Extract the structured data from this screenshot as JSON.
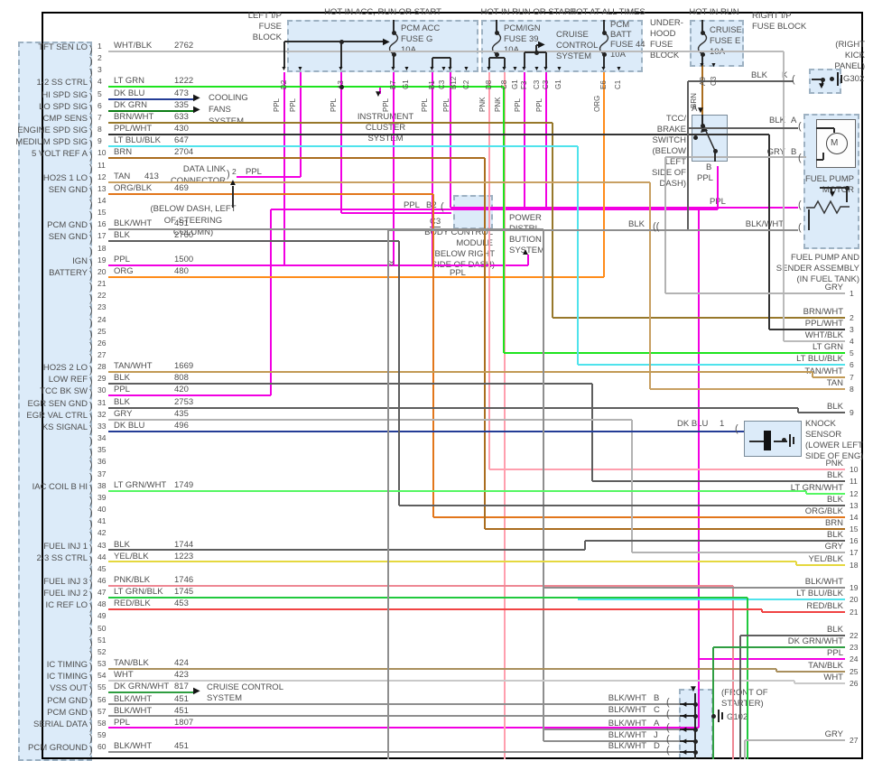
{
  "wire_colors": {
    "PPL": "#f200e2",
    "PNK": "#ff9fae",
    "PNK/BLK": "#ee8793",
    "ORG": "#ff8c1a",
    "ORG/BLK": "#e2761b",
    "BRN": "#aa6d1f",
    "BRN/WHT": "#97782b",
    "TAN": "#c8a063",
    "TAN/WHT": "#c29a55",
    "TAN/BLK": "#a98f5d",
    "WHT": "#c9c9c9",
    "WHT/BLK": "#bbbbbb",
    "GRY": "#b3b3b3",
    "BLK": "#5e5e5e",
    "BLK/WHT": "#8e8e8e",
    "LT GRN": "#1ee41e",
    "LT GRN/WHT": "#55f763",
    "LT GRN/BLK": "#21c93e",
    "DK GRN": "#0b7d14",
    "DK GRN/WHT": "#2f9e41",
    "DK BLU": "#243d96",
    "LT BLU/BLK": "#4fe3ec",
    "YEL/BLK": "#e5d83f",
    "RED/BLK": "#f04343",
    "BUS": "#2b2b2b"
  },
  "pcm_connector": {
    "pins": [
      {
        "n": 1,
        "label": "TFT SEN LO",
        "wire": "WHT/BLK",
        "circuit": "2762"
      },
      {
        "n": 2
      },
      {
        "n": 3
      },
      {
        "n": 4,
        "label": "1-2 SS CTRL",
        "wire": "LT GRN",
        "circuit": "1222"
      },
      {
        "n": 5,
        "label": "HI SPD SIG",
        "wire": "DK BLU",
        "circuit": "473"
      },
      {
        "n": 6,
        "label": "LO SPD SIG",
        "wire": "DK GRN",
        "circuit": "335"
      },
      {
        "n": 7,
        "label": "CMP SENS",
        "wire": "BRN/WHT",
        "circuit": "633"
      },
      {
        "n": 8,
        "label": "ENGINE SPD SIG",
        "wire": "PPL/WHT",
        "circuit": "430"
      },
      {
        "n": 9,
        "label": "MEDIUM SPD SIG",
        "wire": "LT BLU/BLK",
        "circuit": "647"
      },
      {
        "n": 10,
        "label": "5 VOLT REF A",
        "wire": "BRN",
        "circuit": "2704"
      },
      {
        "n": 11
      },
      {
        "n": 12,
        "label": "HO2S 1 LO",
        "wire": "TAN",
        "circuit": "413"
      },
      {
        "n": 13,
        "label": "SEN GND",
        "wire": "ORG/BLK",
        "circuit": "469"
      },
      {
        "n": 14
      },
      {
        "n": 15
      },
      {
        "n": 16,
        "label": "PCM GND",
        "wire": "BLK/WHT",
        "circuit": "451"
      },
      {
        "n": 17,
        "label": "SEN GND",
        "wire": "BLK",
        "circuit": "2760"
      },
      {
        "n": 18
      },
      {
        "n": 19,
        "label": "IGN",
        "wire": "PPL",
        "circuit": "1500"
      },
      {
        "n": 20,
        "label": "BATTERY",
        "wire": "ORG",
        "circuit": "480"
      },
      {
        "n": 21
      },
      {
        "n": 22
      },
      {
        "n": 23
      },
      {
        "n": 24
      },
      {
        "n": 25
      },
      {
        "n": 26
      },
      {
        "n": 27
      },
      {
        "n": 28,
        "label": "HO2S 2 LO",
        "wire": "TAN/WHT",
        "circuit": "1669"
      },
      {
        "n": 29,
        "label": "LOW REF",
        "wire": "BLK",
        "circuit": "808"
      },
      {
        "n": 30,
        "label": "TCC BK SW",
        "wire": "PPL",
        "circuit": "420"
      },
      {
        "n": 31,
        "label": "EGR SEN GND",
        "wire": "BLK",
        "circuit": "2753"
      },
      {
        "n": 32,
        "label": "EGR VAL CTRL",
        "wire": "GRY",
        "circuit": "435"
      },
      {
        "n": 33,
        "label": "KS SIGNAL",
        "wire": "DK BLU",
        "circuit": "496"
      },
      {
        "n": 34
      },
      {
        "n": 35
      },
      {
        "n": 36
      },
      {
        "n": 37
      },
      {
        "n": 38,
        "label": "IAC COIL B HI",
        "wire": "LT GRN/WHT",
        "circuit": "1749"
      },
      {
        "n": 39
      },
      {
        "n": 40
      },
      {
        "n": 41
      },
      {
        "n": 42
      },
      {
        "n": 43,
        "label": "FUEL INJ 1",
        "wire": "BLK",
        "circuit": "1744"
      },
      {
        "n": 44,
        "label": "2-3 SS CTRL",
        "wire": "YEL/BLK",
        "circuit": "1223"
      },
      {
        "n": 45
      },
      {
        "n": 46,
        "label": "FUEL INJ 3",
        "wire": "PNK/BLK",
        "circuit": "1746"
      },
      {
        "n": 47,
        "label": "FUEL INJ 2",
        "wire": "LT GRN/BLK",
        "circuit": "1745"
      },
      {
        "n": 48,
        "label": "IC REF LO",
        "wire": "RED/BLK",
        "circuit": "453"
      },
      {
        "n": 49
      },
      {
        "n": 50
      },
      {
        "n": 51
      },
      {
        "n": 52
      },
      {
        "n": 53,
        "label": "IC TIMING",
        "wire": "TAN/BLK",
        "circuit": "424"
      },
      {
        "n": 54,
        "label": "IC TIMING",
        "wire": "WHT",
        "circuit": "423"
      },
      {
        "n": 55,
        "label": "VSS OUT",
        "wire": "DK GRN/WHT",
        "circuit": "817"
      },
      {
        "n": 56,
        "label": "PCM GND",
        "wire": "BLK/WHT",
        "circuit": "451"
      },
      {
        "n": 57,
        "label": "PCM GND",
        "wire": "BLK/WHT",
        "circuit": "451"
      },
      {
        "n": 58,
        "label": "SERIAL DATA",
        "wire": "PPL",
        "circuit": "1807"
      },
      {
        "n": 59
      },
      {
        "n": 60,
        "label": "PCM GROUND",
        "wire": "BLK/WHT",
        "circuit": "451"
      }
    ]
  },
  "fuse_area": {
    "headers": {
      "h1": "HOT IN ACC, RUN OR START",
      "h2": "HOT IN RUN OR START",
      "h3": "HOT AT ALL TIMES",
      "h4": "HOT IN RUN"
    },
    "left_ip_label": [
      "LEFT I/P",
      "FUSE",
      "BLOCK"
    ],
    "underhood_label": [
      "UNDER-",
      "HOOD",
      "FUSE",
      "BLOCK"
    ],
    "right_ip_label": [
      "RIGHT I/P",
      "FUSE BLOCK"
    ],
    "fuse_g": [
      "PCM ACC",
      "FUSE G",
      "10A"
    ],
    "fuse_39": [
      "PCM/IGN",
      "FUSE 39",
      "10A"
    ],
    "fuse_44": [
      "PCM",
      "BATT",
      "FUSE 44",
      "10A"
    ],
    "fuse_e": [
      "CRUISE",
      "FUSE E",
      "10A"
    ],
    "cruise_inside": [
      "CRUISE",
      "CONTROL",
      "SYSTEM"
    ],
    "left_ip_pins": [
      {
        "pin": "D2",
        "wire": "PPL"
      },
      {
        "pin": "",
        "wire": "PPL"
      },
      {
        "pin": "A3",
        "wire": "PPL"
      },
      {
        "pin": "B7",
        "wire": "PPL"
      },
      {
        "pin": "G1",
        "wire": ""
      },
      {
        "pin": "B1",
        "wire": "PPL"
      },
      {
        "pin": "C3",
        "wire": ""
      },
      {
        "pin": "B12",
        "wire": "PPL"
      },
      {
        "pin": "C2",
        "wire": ""
      }
    ],
    "underhood_pins": [
      {
        "pin": "D8",
        "wire": "PNK"
      },
      {
        "pin": "C8",
        "wire": "PNK"
      },
      {
        "pin": "G1",
        "wire": ""
      },
      {
        "pin": "F3",
        "wire": "PPL"
      },
      {
        "pin": "C3",
        "wire": ""
      },
      {
        "pin": "C3",
        "wire": "PPL"
      },
      {
        "pin": "G1",
        "wire": ""
      },
      {
        "pin": "E6",
        "wire": "ORG"
      },
      {
        "pin": "C1",
        "wire": ""
      }
    ],
    "right_ip_pins": [
      {
        "pin": "A9",
        "wire": "BRN"
      },
      {
        "pin": "C3",
        "wire": ""
      }
    ]
  },
  "right_edge_rows": [
    {
      "n": "1",
      "wire": "GRY"
    },
    {
      "n": "2",
      "wire": "BRN/WHT"
    },
    {
      "n": "3",
      "wire": "PPL/WHT"
    },
    {
      "n": "4",
      "wire": "WHT/BLK"
    },
    {
      "n": "5",
      "wire": "LT GRN"
    },
    {
      "n": "6",
      "wire": "LT BLU/BLK"
    },
    {
      "n": "7",
      "wire": "TAN/WHT"
    },
    {
      "n": "8",
      "wire": "TAN"
    },
    {
      "n": "9",
      "wire": "BLK"
    },
    {
      "n": "10",
      "wire": "PNK"
    },
    {
      "n": "11",
      "wire": "BLK"
    },
    {
      "n": "12",
      "wire": "LT GRN/WHT"
    },
    {
      "n": "13",
      "wire": "BLK"
    },
    {
      "n": "14",
      "wire": "ORG/BLK"
    },
    {
      "n": "15",
      "wire": "BRN"
    },
    {
      "n": "16",
      "wire": "BLK"
    },
    {
      "n": "17",
      "wire": "GRY"
    },
    {
      "n": "18",
      "wire": "YEL/BLK"
    },
    {
      "n": "19",
      "wire": "BLK/WHT"
    },
    {
      "n": "20",
      "wire": "LT BLU/BLK"
    },
    {
      "n": "21",
      "wire": "RED/BLK"
    },
    {
      "n": "22",
      "wire": "BLK"
    },
    {
      "n": "23",
      "wire": "DK GRN/WHT"
    },
    {
      "n": "24",
      "wire": "PPL"
    },
    {
      "n": "25",
      "wire": "TAN/BLK"
    },
    {
      "n": "26",
      "wire": "WHT"
    },
    {
      "n": "27",
      "wire": "GRY"
    }
  ],
  "systems": {
    "cooling": [
      "COOLING",
      "FANS",
      "SYSTEM"
    ],
    "instrument": [
      "INSTRUMENT",
      "CLUSTER",
      "SYSTEM"
    ],
    "power": [
      "POWER",
      "DISTRI-",
      "BUTION",
      "SYSTEM"
    ],
    "cruise_bottom": [
      "CRUISE CONTROL",
      "SYSTEM"
    ]
  },
  "data_link": {
    "title": [
      "DATA LINK",
      "CONNECTOR"
    ],
    "pin": "2",
    "wire": "PPL",
    "location": [
      "(BELOW DASH, LEFT",
      "OF STEERING",
      "COLUMN)"
    ]
  },
  "bcm": {
    "wire": "PPL",
    "pin": "B2",
    "connector": "C3",
    "title": [
      "BODY CONTROL",
      "MODULE"
    ],
    "location": [
      "(BELOW RIGHT",
      "SIDE OF DASH)"
    ],
    "out_wire": "PPL"
  },
  "tcc": {
    "label": [
      "TCC/",
      "BRAKE",
      "SWITCH",
      "(BELOW",
      "LEFT",
      "SIDE OF",
      "DASH)"
    ],
    "pin_a": "A",
    "pin_b": "B",
    "wire_a": "BRN",
    "wire_b": "PPL"
  },
  "g302": {
    "location": [
      "(RIGHT",
      "KICK",
      "PANEL)"
    ],
    "name": "G302",
    "wire": "BLK",
    "pin": "K"
  },
  "fuel_pump": {
    "motor_label": [
      "FUEL PUMP",
      "MOTOR"
    ],
    "assembly_label": [
      "FUEL PUMP AND",
      "SENDER ASSEMBLY",
      "(IN FUEL TANK)"
    ],
    "motor_symbol": "M",
    "wire_a": {
      "wire": "BLK",
      "pin": "A"
    },
    "wire_b": {
      "wire": "GRY",
      "pin": "B"
    },
    "wire_ppl": "PPL",
    "wire_blkwht": "BLK/WHT",
    "splice_wire": "BLK"
  },
  "knock_sensor": {
    "label": [
      "KNOCK",
      "SENSOR",
      "(LOWER LEFT",
      "SIDE OF ENG)"
    ],
    "wire": "DK BLU",
    "pin": "1"
  },
  "g102": {
    "location": [
      "(FRONT OF",
      "STARTER)"
    ],
    "name": "G102",
    "rows": [
      {
        "wire": "BLK/WHT",
        "pin": "B"
      },
      {
        "wire": "BLK/WHT",
        "pin": "C"
      },
      {
        "wire": "BLK/WHT",
        "pin": "A"
      },
      {
        "wire": "BLK/WHT",
        "pin": "J"
      },
      {
        "wire": "BLK/WHT",
        "pin": "D"
      }
    ]
  }
}
